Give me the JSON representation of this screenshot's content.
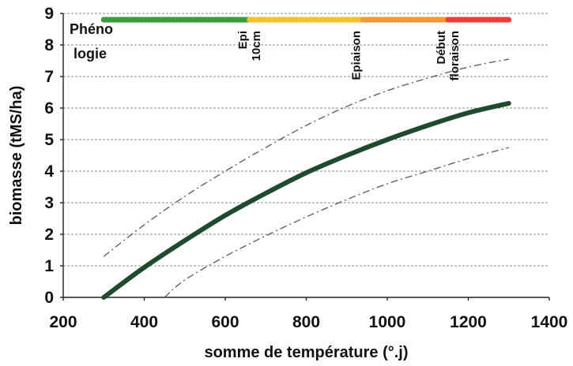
{
  "chart_data": {
    "type": "line",
    "xlabel": "somme de température (°.j)",
    "ylabel": "biomasse (tMS/ha)",
    "xlim": [
      200,
      1400
    ],
    "ylim": [
      0,
      9
    ],
    "xticks": [
      200,
      400,
      600,
      800,
      1000,
      1200,
      1400
    ],
    "yticks": [
      0,
      1,
      2,
      3,
      4,
      5,
      6,
      7,
      8,
      9
    ],
    "grid": "horizontal dashed",
    "legend": "none",
    "series": [
      {
        "style": "solid-thick",
        "color": "#1f4a2c",
        "x": [
          300,
          400,
          500,
          600,
          700,
          800,
          900,
          1000,
          1100,
          1200,
          1300
        ],
        "y": [
          0,
          0.95,
          1.8,
          2.6,
          3.3,
          3.95,
          4.5,
          5.0,
          5.45,
          5.85,
          6.15
        ]
      },
      {
        "style": "dash-dot",
        "color": "#556b55",
        "x": [
          300,
          400,
          500,
          600,
          700,
          800,
          900,
          1000,
          1100,
          1200,
          1300
        ],
        "y": [
          1.3,
          2.3,
          3.2,
          4.0,
          4.75,
          5.45,
          6.05,
          6.55,
          6.95,
          7.3,
          7.55
        ]
      },
      {
        "style": "dash-dot",
        "color": "#556b55",
        "x": [
          450,
          500,
          600,
          700,
          800,
          900,
          1000,
          1100,
          1200,
          1300
        ],
        "y": [
          0,
          0.55,
          1.3,
          1.95,
          2.55,
          3.1,
          3.6,
          4.0,
          4.4,
          4.75
        ]
      }
    ],
    "phenology": {
      "label_line1": "Phéno",
      "label_line2": "logie",
      "bar": [
        {
          "from": 300,
          "to": 660,
          "color": "#3d9a3f"
        },
        {
          "from": 660,
          "to": 940,
          "color": "#f2c233"
        },
        {
          "from": 940,
          "to": 1150,
          "color": "#ef9a3a"
        },
        {
          "from": 1150,
          "to": 1300,
          "color": "#e8403c"
        }
      ],
      "stages": [
        {
          "x": 660,
          "lines": [
            "Epi",
            "10cm"
          ]
        },
        {
          "x": 940,
          "lines": [
            "Epiaison"
          ]
        },
        {
          "x": 1150,
          "lines": [
            "Début",
            "floraison"
          ]
        }
      ]
    }
  }
}
